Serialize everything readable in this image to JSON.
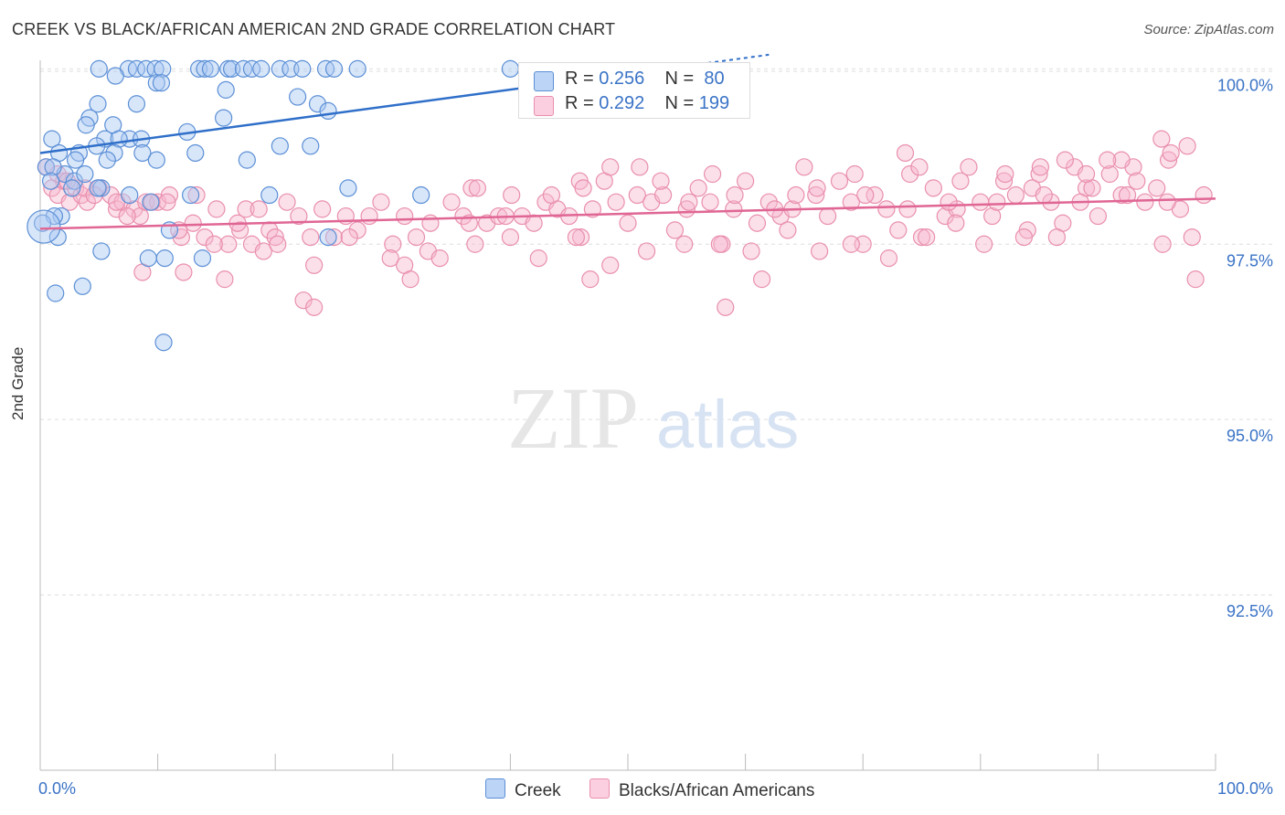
{
  "title": "CREEK VS BLACK/AFRICAN AMERICAN 2ND GRADE CORRELATION CHART",
  "source": "Source: ZipAtlas.com",
  "watermark": {
    "zip": "ZIP",
    "atlas": "atlas"
  },
  "colors": {
    "blue_fill": "#a9c8f2",
    "blue_stroke": "#5b8fd6",
    "blue_line": "#2f6fc9",
    "pink_fill": "#f7b9cf",
    "pink_stroke": "#e98fae",
    "pink_line": "#e06694",
    "tick_label": "#3a73c6",
    "grid": "#dddddd"
  },
  "legend_top": [
    {
      "r_label": "R = ",
      "r_value": "0.256",
      "n_label": "N = ",
      "n_value": "80"
    },
    {
      "r_label": "R = ",
      "r_value": "0.292",
      "n_label": "N = ",
      "n_value": "199"
    }
  ],
  "legend_bottom": [
    "Creek",
    "Blacks/African Americans"
  ],
  "chart_data": {
    "type": "scatter",
    "ylabel": "2nd Grade",
    "xlim": [
      0,
      100
    ],
    "ylim": [
      90.0,
      100.2
    ],
    "x_tick_labels": [
      "0.0%",
      "100.0%"
    ],
    "y_ticks": [
      92.5,
      95.0,
      97.5,
      100.0
    ],
    "y_tick_labels": [
      "92.5%",
      "95.0%",
      "97.5%",
      "100.0%"
    ],
    "grid": "horizontal dashed",
    "legend": "top-center, bottom",
    "series": [
      {
        "name": "Creek",
        "color": "blue",
        "trend": {
          "x": [
            0,
            50
          ],
          "y": [
            98.8,
            99.93
          ]
        },
        "points": [
          [
            5,
            100
          ],
          [
            7.5,
            100
          ],
          [
            8.2,
            100
          ],
          [
            9,
            100
          ],
          [
            9.8,
            100
          ],
          [
            10.4,
            100
          ],
          [
            13.5,
            100
          ],
          [
            14,
            100
          ],
          [
            14.5,
            100
          ],
          [
            16,
            100
          ],
          [
            16.3,
            100
          ],
          [
            17.3,
            100
          ],
          [
            18,
            100
          ],
          [
            18.8,
            100
          ],
          [
            20.4,
            100
          ],
          [
            21.3,
            100
          ],
          [
            22.3,
            100
          ],
          [
            24.3,
            100
          ],
          [
            25,
            100
          ],
          [
            27,
            100
          ],
          [
            40,
            100
          ],
          [
            6.4,
            99.9
          ],
          [
            9.9,
            99.8
          ],
          [
            10.3,
            99.8
          ],
          [
            15.8,
            99.7
          ],
          [
            21.9,
            99.6
          ],
          [
            4.9,
            99.5
          ],
          [
            8.2,
            99.5
          ],
          [
            23.6,
            99.5
          ],
          [
            24.5,
            99.4
          ],
          [
            4.2,
            99.3
          ],
          [
            15.6,
            99.3
          ],
          [
            3.9,
            99.2
          ],
          [
            6.2,
            99.2
          ],
          [
            12.5,
            99.1
          ],
          [
            1,
            99
          ],
          [
            5.5,
            99
          ],
          [
            7.6,
            99
          ],
          [
            6.7,
            99
          ],
          [
            8.6,
            99
          ],
          [
            4.8,
            98.9
          ],
          [
            6.3,
            98.8
          ],
          [
            13.2,
            98.8
          ],
          [
            8.7,
            98.8
          ],
          [
            23,
            98.9
          ],
          [
            20.4,
            98.9
          ],
          [
            3.3,
            98.8
          ],
          [
            5.7,
            98.7
          ],
          [
            3,
            98.7
          ],
          [
            1.6,
            98.8
          ],
          [
            9.9,
            98.7
          ],
          [
            2.1,
            98.5
          ],
          [
            0.5,
            98.6
          ],
          [
            1.1,
            98.6
          ],
          [
            17.6,
            98.7
          ],
          [
            0.9,
            98.4
          ],
          [
            2.9,
            98.4
          ],
          [
            3.8,
            98.5
          ],
          [
            5.2,
            98.3
          ],
          [
            2.7,
            98.3
          ],
          [
            9.4,
            98.1
          ],
          [
            4.9,
            98.3
          ],
          [
            19.5,
            98.2
          ],
          [
            7.6,
            98.2
          ],
          [
            12.8,
            98.2
          ],
          [
            26.2,
            98.3
          ],
          [
            32.4,
            98.2
          ],
          [
            1.8,
            97.9
          ],
          [
            1.2,
            97.9
          ],
          [
            11,
            97.7
          ],
          [
            13.8,
            97.3
          ],
          [
            0.2,
            97.8
          ],
          [
            1.5,
            97.6
          ],
          [
            5.2,
            97.4
          ],
          [
            9.2,
            97.3
          ],
          [
            10.6,
            97.3
          ],
          [
            24.5,
            97.6
          ],
          [
            1.3,
            96.8
          ],
          [
            3.6,
            96.9
          ],
          [
            10.5,
            96.1
          ],
          [
            0.3,
            97.75
          ]
        ]
      },
      {
        "name": "Blacks/African Americans",
        "color": "pink",
        "trend": {
          "x": [
            0,
            100
          ],
          "y": [
            97.72,
            98.15
          ]
        },
        "points": [
          [
            0.5,
            98.6
          ],
          [
            1,
            98.3
          ],
          [
            1.5,
            98.2
          ],
          [
            2,
            98.4
          ],
          [
            2.5,
            98.1
          ],
          [
            3,
            98.3
          ],
          [
            3.5,
            98.2
          ],
          [
            4,
            98.1
          ],
          [
            5,
            98.3
          ],
          [
            6,
            98.2
          ],
          [
            6.5,
            98
          ],
          [
            7,
            98.1
          ],
          [
            8,
            98
          ],
          [
            8.5,
            97.9
          ],
          [
            9,
            98.1
          ],
          [
            10,
            98.1
          ],
          [
            11,
            98.2
          ],
          [
            12,
            97.6
          ],
          [
            13,
            97.8
          ],
          [
            14,
            97.6
          ],
          [
            15,
            98
          ],
          [
            16,
            97.5
          ],
          [
            17,
            97.7
          ],
          [
            18,
            97.5
          ],
          [
            19,
            97.4
          ],
          [
            19.5,
            97.7
          ],
          [
            20,
            97.6
          ],
          [
            21,
            98.1
          ],
          [
            22,
            97.9
          ],
          [
            23,
            97.6
          ],
          [
            24,
            98
          ],
          [
            25,
            97.6
          ],
          [
            26,
            97.9
          ],
          [
            27,
            97.7
          ],
          [
            28,
            97.9
          ],
          [
            29,
            98.1
          ],
          [
            30,
            97.5
          ],
          [
            31,
            97.9
          ],
          [
            32,
            97.6
          ],
          [
            33,
            97.4
          ],
          [
            34,
            97.3
          ],
          [
            35,
            98.1
          ],
          [
            36,
            97.9
          ],
          [
            37,
            97.5
          ],
          [
            38,
            97.8
          ],
          [
            39,
            97.9
          ],
          [
            40,
            97.6
          ],
          [
            41,
            97.9
          ],
          [
            42,
            97.8
          ],
          [
            43,
            98.1
          ],
          [
            44,
            98
          ],
          [
            45,
            97.9
          ],
          [
            46,
            97.6
          ],
          [
            47,
            98
          ],
          [
            48,
            98.4
          ],
          [
            49,
            98.1
          ],
          [
            50,
            97.8
          ],
          [
            51,
            98.6
          ],
          [
            52,
            98.1
          ],
          [
            53,
            98.2
          ],
          [
            54,
            97.7
          ],
          [
            55,
            98
          ],
          [
            56,
            98.3
          ],
          [
            57,
            98.1
          ],
          [
            58,
            97.5
          ],
          [
            59,
            98
          ],
          [
            60,
            98.4
          ],
          [
            61,
            97.8
          ],
          [
            62,
            98.1
          ],
          [
            63,
            97.9
          ],
          [
            64,
            98
          ],
          [
            65,
            98.6
          ],
          [
            66,
            98.2
          ],
          [
            67,
            97.9
          ],
          [
            68,
            98.4
          ],
          [
            69,
            98.1
          ],
          [
            70,
            97.5
          ],
          [
            71,
            98.2
          ],
          [
            72,
            98
          ],
          [
            73,
            97.7
          ],
          [
            74,
            98.5
          ],
          [
            75,
            97.6
          ],
          [
            76,
            98.3
          ],
          [
            77,
            97.9
          ],
          [
            78,
            98
          ],
          [
            79,
            98.6
          ],
          [
            80,
            98.1
          ],
          [
            81,
            97.9
          ],
          [
            82,
            98.4
          ],
          [
            83,
            98.2
          ],
          [
            84,
            97.7
          ],
          [
            85,
            98.5
          ],
          [
            86,
            98.1
          ],
          [
            87,
            97.8
          ],
          [
            88,
            98.6
          ],
          [
            89,
            98.3
          ],
          [
            90,
            97.9
          ],
          [
            91,
            98.5
          ],
          [
            92,
            98.2
          ],
          [
            93,
            98.6
          ],
          [
            94,
            98.1
          ],
          [
            95,
            98.3
          ],
          [
            96,
            98.7
          ],
          [
            97,
            98
          ],
          [
            98,
            97.6
          ],
          [
            99,
            98.2
          ],
          [
            1.5,
            98.5
          ],
          [
            3.8,
            98.3
          ],
          [
            6.5,
            98.1
          ],
          [
            9.5,
            98.1
          ],
          [
            11.8,
            97.7
          ],
          [
            14.8,
            97.5
          ],
          [
            17.5,
            98
          ],
          [
            20.2,
            97.5
          ],
          [
            23.3,
            97.2
          ],
          [
            26.3,
            97.6
          ],
          [
            29.8,
            97.3
          ],
          [
            31,
            97.2
          ],
          [
            33.2,
            97.8
          ],
          [
            36.5,
            97.8
          ],
          [
            39.6,
            97.9
          ],
          [
            42.4,
            97.3
          ],
          [
            45.6,
            97.6
          ],
          [
            48.5,
            97.2
          ],
          [
            51.6,
            97.4
          ],
          [
            54.8,
            97.5
          ],
          [
            57.8,
            97.5
          ],
          [
            60.5,
            97.4
          ],
          [
            63.6,
            97.7
          ],
          [
            66.3,
            97.4
          ],
          [
            69,
            97.5
          ],
          [
            72.2,
            97.3
          ],
          [
            75.4,
            97.6
          ],
          [
            77.9,
            97.8
          ],
          [
            80.3,
            97.5
          ],
          [
            83.7,
            97.6
          ],
          [
            86.5,
            97.6
          ],
          [
            89.5,
            98.3
          ],
          [
            92,
            98.7
          ],
          [
            95.5,
            97.5
          ],
          [
            98.3,
            97
          ],
          [
            8.7,
            97.1
          ],
          [
            12.2,
            97.1
          ],
          [
            15.7,
            97
          ],
          [
            22.4,
            96.7
          ],
          [
            23.3,
            96.6
          ],
          [
            31.5,
            97
          ],
          [
            46.8,
            97
          ],
          [
            58.3,
            96.6
          ],
          [
            61.4,
            97
          ],
          [
            36.7,
            98.3
          ],
          [
            45.9,
            98.4
          ],
          [
            48.5,
            98.6
          ],
          [
            52.8,
            98.4
          ],
          [
            57.2,
            98.5
          ],
          [
            64.3,
            98.2
          ],
          [
            69.3,
            98.5
          ],
          [
            73.6,
            98.8
          ],
          [
            74.8,
            98.6
          ],
          [
            78.3,
            98.4
          ],
          [
            82.1,
            98.5
          ],
          [
            84.4,
            98.3
          ],
          [
            85.1,
            98.6
          ],
          [
            87.2,
            98.7
          ],
          [
            89,
            98.5
          ],
          [
            90.8,
            98.7
          ],
          [
            93.3,
            98.4
          ],
          [
            95.4,
            99
          ],
          [
            96.2,
            98.8
          ],
          [
            97.6,
            98.9
          ],
          [
            37.2,
            98.3
          ],
          [
            40.1,
            98.2
          ],
          [
            43.5,
            98.2
          ],
          [
            46.2,
            98.3
          ],
          [
            50.8,
            98.2
          ],
          [
            55.2,
            98.1
          ],
          [
            59.1,
            98.2
          ],
          [
            62.5,
            98
          ],
          [
            66.1,
            98.3
          ],
          [
            70.2,
            98.2
          ],
          [
            73.8,
            98
          ],
          [
            77.3,
            98.1
          ],
          [
            81.4,
            98.1
          ],
          [
            85.4,
            98.2
          ],
          [
            88.5,
            98.1
          ],
          [
            92.5,
            98.2
          ],
          [
            95.9,
            98.1
          ],
          [
            2.3,
            98.4
          ],
          [
            4.6,
            98.2
          ],
          [
            7.4,
            97.9
          ],
          [
            10.8,
            98.1
          ],
          [
            13.3,
            98.2
          ],
          [
            16.8,
            97.8
          ],
          [
            18.6,
            98
          ]
        ]
      }
    ]
  }
}
